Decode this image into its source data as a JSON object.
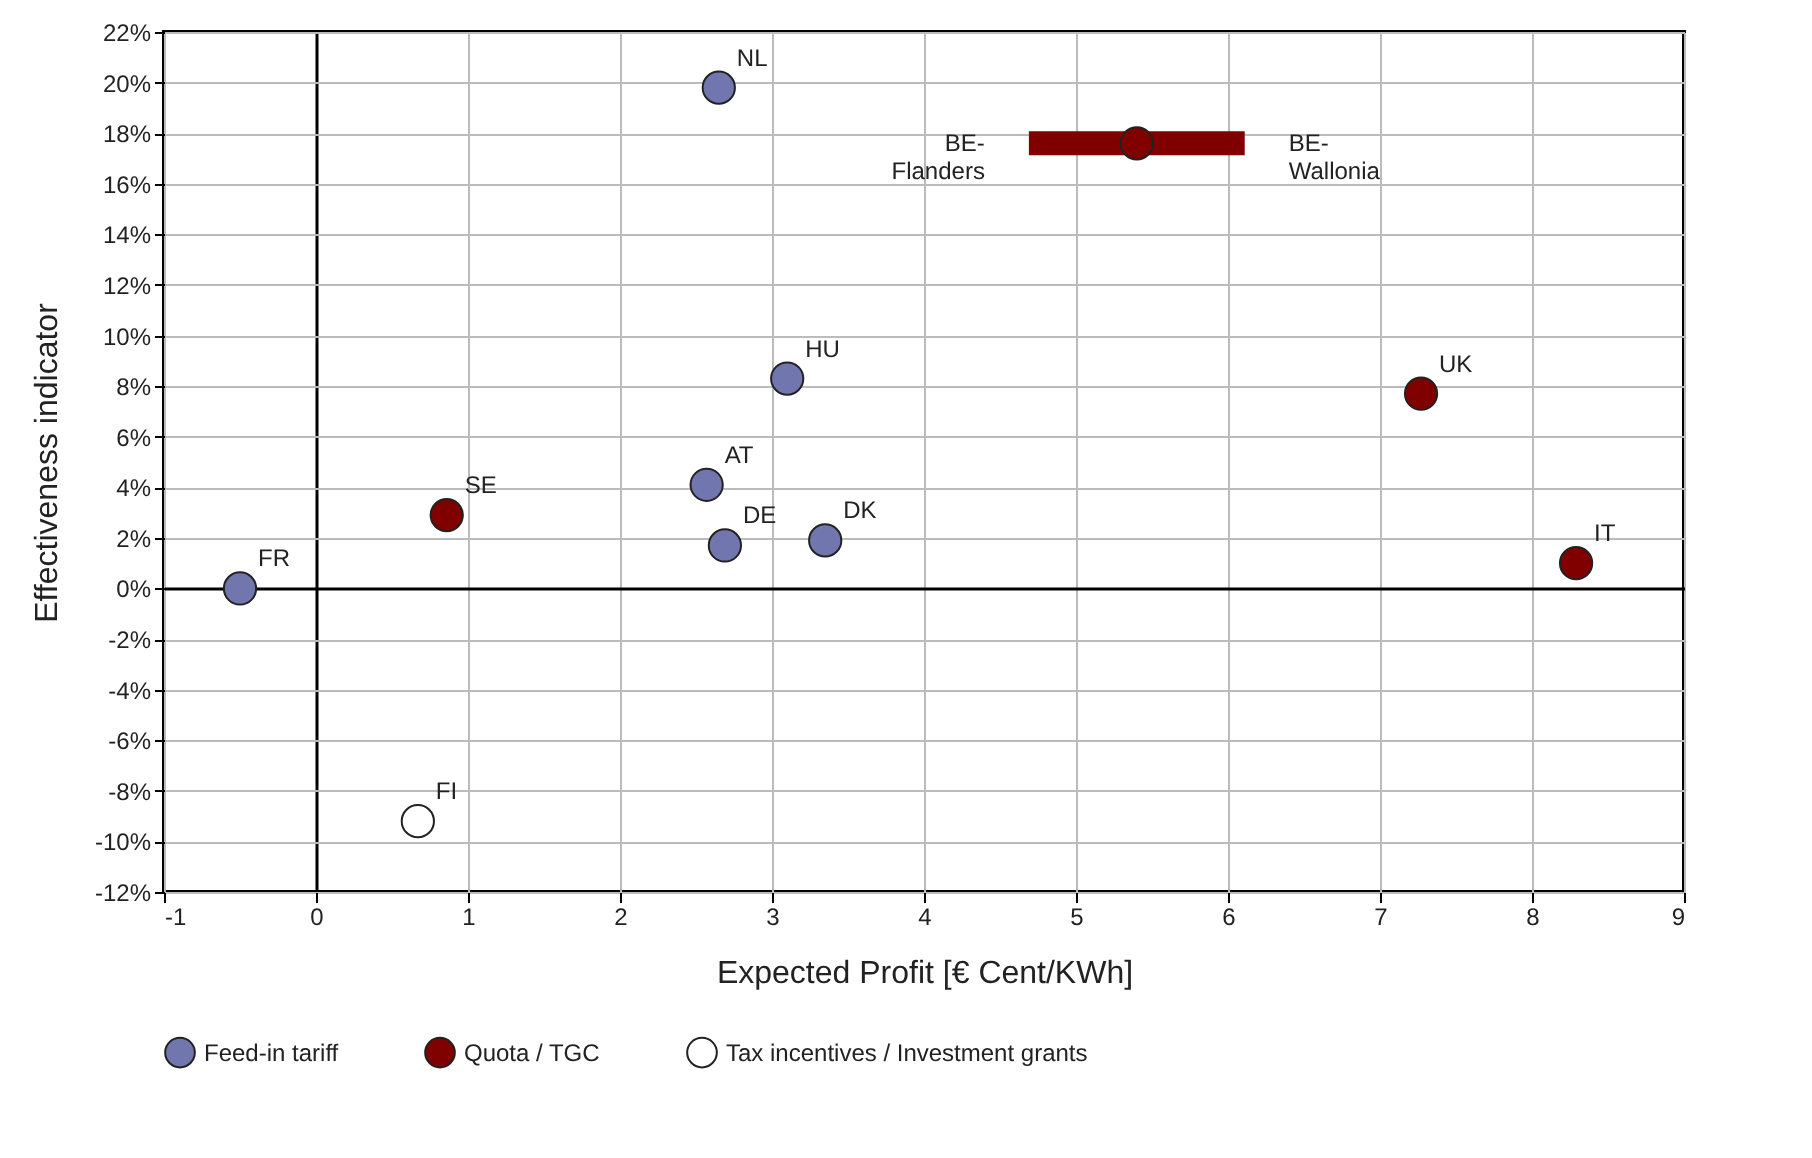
{
  "chart_data": {
    "type": "scatter",
    "xlabel": "Expected Profit [€ Cent/KWh]",
    "ylabel": "Effectiveness indicator",
    "xlim": [
      -1,
      9
    ],
    "xticks": [
      -1,
      0,
      1,
      2,
      3,
      4,
      5,
      6,
      7,
      8,
      9
    ],
    "ylim": [
      -12,
      22
    ],
    "yticks": [
      {
        "value": -12,
        "label": "-12%"
      },
      {
        "value": -10,
        "label": "-10%"
      },
      {
        "value": -8,
        "label": "-8%"
      },
      {
        "value": -6,
        "label": "-6%"
      },
      {
        "value": -4,
        "label": "-4%"
      },
      {
        "value": -2,
        "label": "-2%"
      },
      {
        "value": 0,
        "label": "0%"
      },
      {
        "value": 2,
        "label": "2%"
      },
      {
        "value": 4,
        "label": "4%"
      },
      {
        "value": 6,
        "label": "6%"
      },
      {
        "value": 8,
        "label": "8%"
      },
      {
        "value": 10,
        "label": "10%"
      },
      {
        "value": 12,
        "label": "12%"
      },
      {
        "value": 14,
        "label": "14%"
      },
      {
        "value": 16,
        "label": "16%"
      },
      {
        "value": 18,
        "label": "18%"
      },
      {
        "value": 20,
        "label": "20%"
      },
      {
        "value": 22,
        "label": "22%"
      }
    ],
    "grid": true,
    "legend": "bottom",
    "marker": "circle",
    "series": [
      {
        "name": "Feed-in tariff",
        "color": "#7276ae",
        "x": [
          -0.5,
          2.65,
          3.1,
          2.57,
          2.69,
          3.35
        ],
        "values": [
          0,
          19.8,
          8.3,
          4.1,
          1.7,
          1.9
        ],
        "value_labels": [
          "FR",
          "NL",
          "HU",
          "AT",
          "DE",
          "DK"
        ]
      },
      {
        "name": "Quota / TGC",
        "color": "#800000",
        "x": [
          0.86,
          5.4,
          7.27,
          8.29
        ],
        "values": [
          2.9,
          17.6,
          7.7,
          1.0
        ],
        "xerrors": [
          null,
          [
            4.69,
            6.11
          ],
          null,
          null
        ],
        "value_labels": [
          "SE",
          null,
          "UK",
          "IT"
        ]
      },
      {
        "name": "Tax incentives / Investment grants",
        "color": "#ffffff",
        "x": [
          0.67
        ],
        "values": [
          -9.2
        ],
        "value_labels": [
          "FI"
        ]
      }
    ],
    "annotations": [
      {
        "text": "BE-\nFlanders",
        "x": 4.69,
        "y": 17.6
      },
      {
        "text": "BE-\nWallonia",
        "x": 6.11,
        "y": 17.6
      }
    ]
  }
}
